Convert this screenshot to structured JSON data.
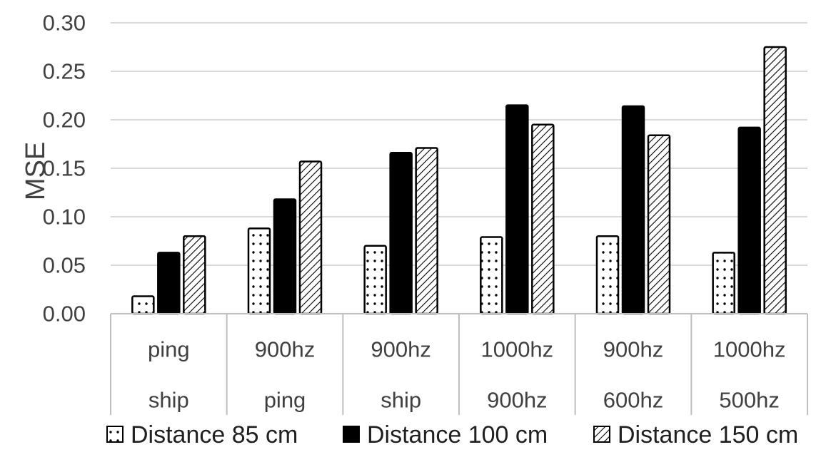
{
  "chart_data": {
    "type": "bar",
    "categories": [
      [
        "ping",
        "ship"
      ],
      [
        "900hz",
        "ping"
      ],
      [
        "900hz",
        "ship"
      ],
      [
        "1000hz",
        "900hz"
      ],
      [
        "900hz",
        "600hz"
      ],
      [
        "1000hz",
        "500hz"
      ]
    ],
    "series": [
      {
        "name": "Distance 85 cm",
        "pattern": "dots",
        "values": [
          0.018,
          0.088,
          0.07,
          0.079,
          0.08,
          0.063
        ]
      },
      {
        "name": "Distance 100 cm",
        "pattern": "solid",
        "values": [
          0.063,
          0.118,
          0.166,
          0.215,
          0.214,
          0.192
        ]
      },
      {
        "name": "Distance 150 cm",
        "pattern": "hatch",
        "values": [
          0.08,
          0.157,
          0.171,
          0.195,
          0.184,
          0.275
        ]
      }
    ],
    "ylabel": "MSE",
    "xlabel": "",
    "ylim": [
      0,
      0.3
    ],
    "yticks": [
      "0.00",
      "0.05",
      "0.10",
      "0.15",
      "0.20",
      "0.25",
      "0.30"
    ],
    "grid": true,
    "legend_position": "bottom"
  },
  "colors": {
    "bar_fill": "#000000",
    "bar_stroke": "#000000",
    "grid": "#d9d9d9",
    "axis": "#bfbfbf",
    "text": "#404040"
  }
}
